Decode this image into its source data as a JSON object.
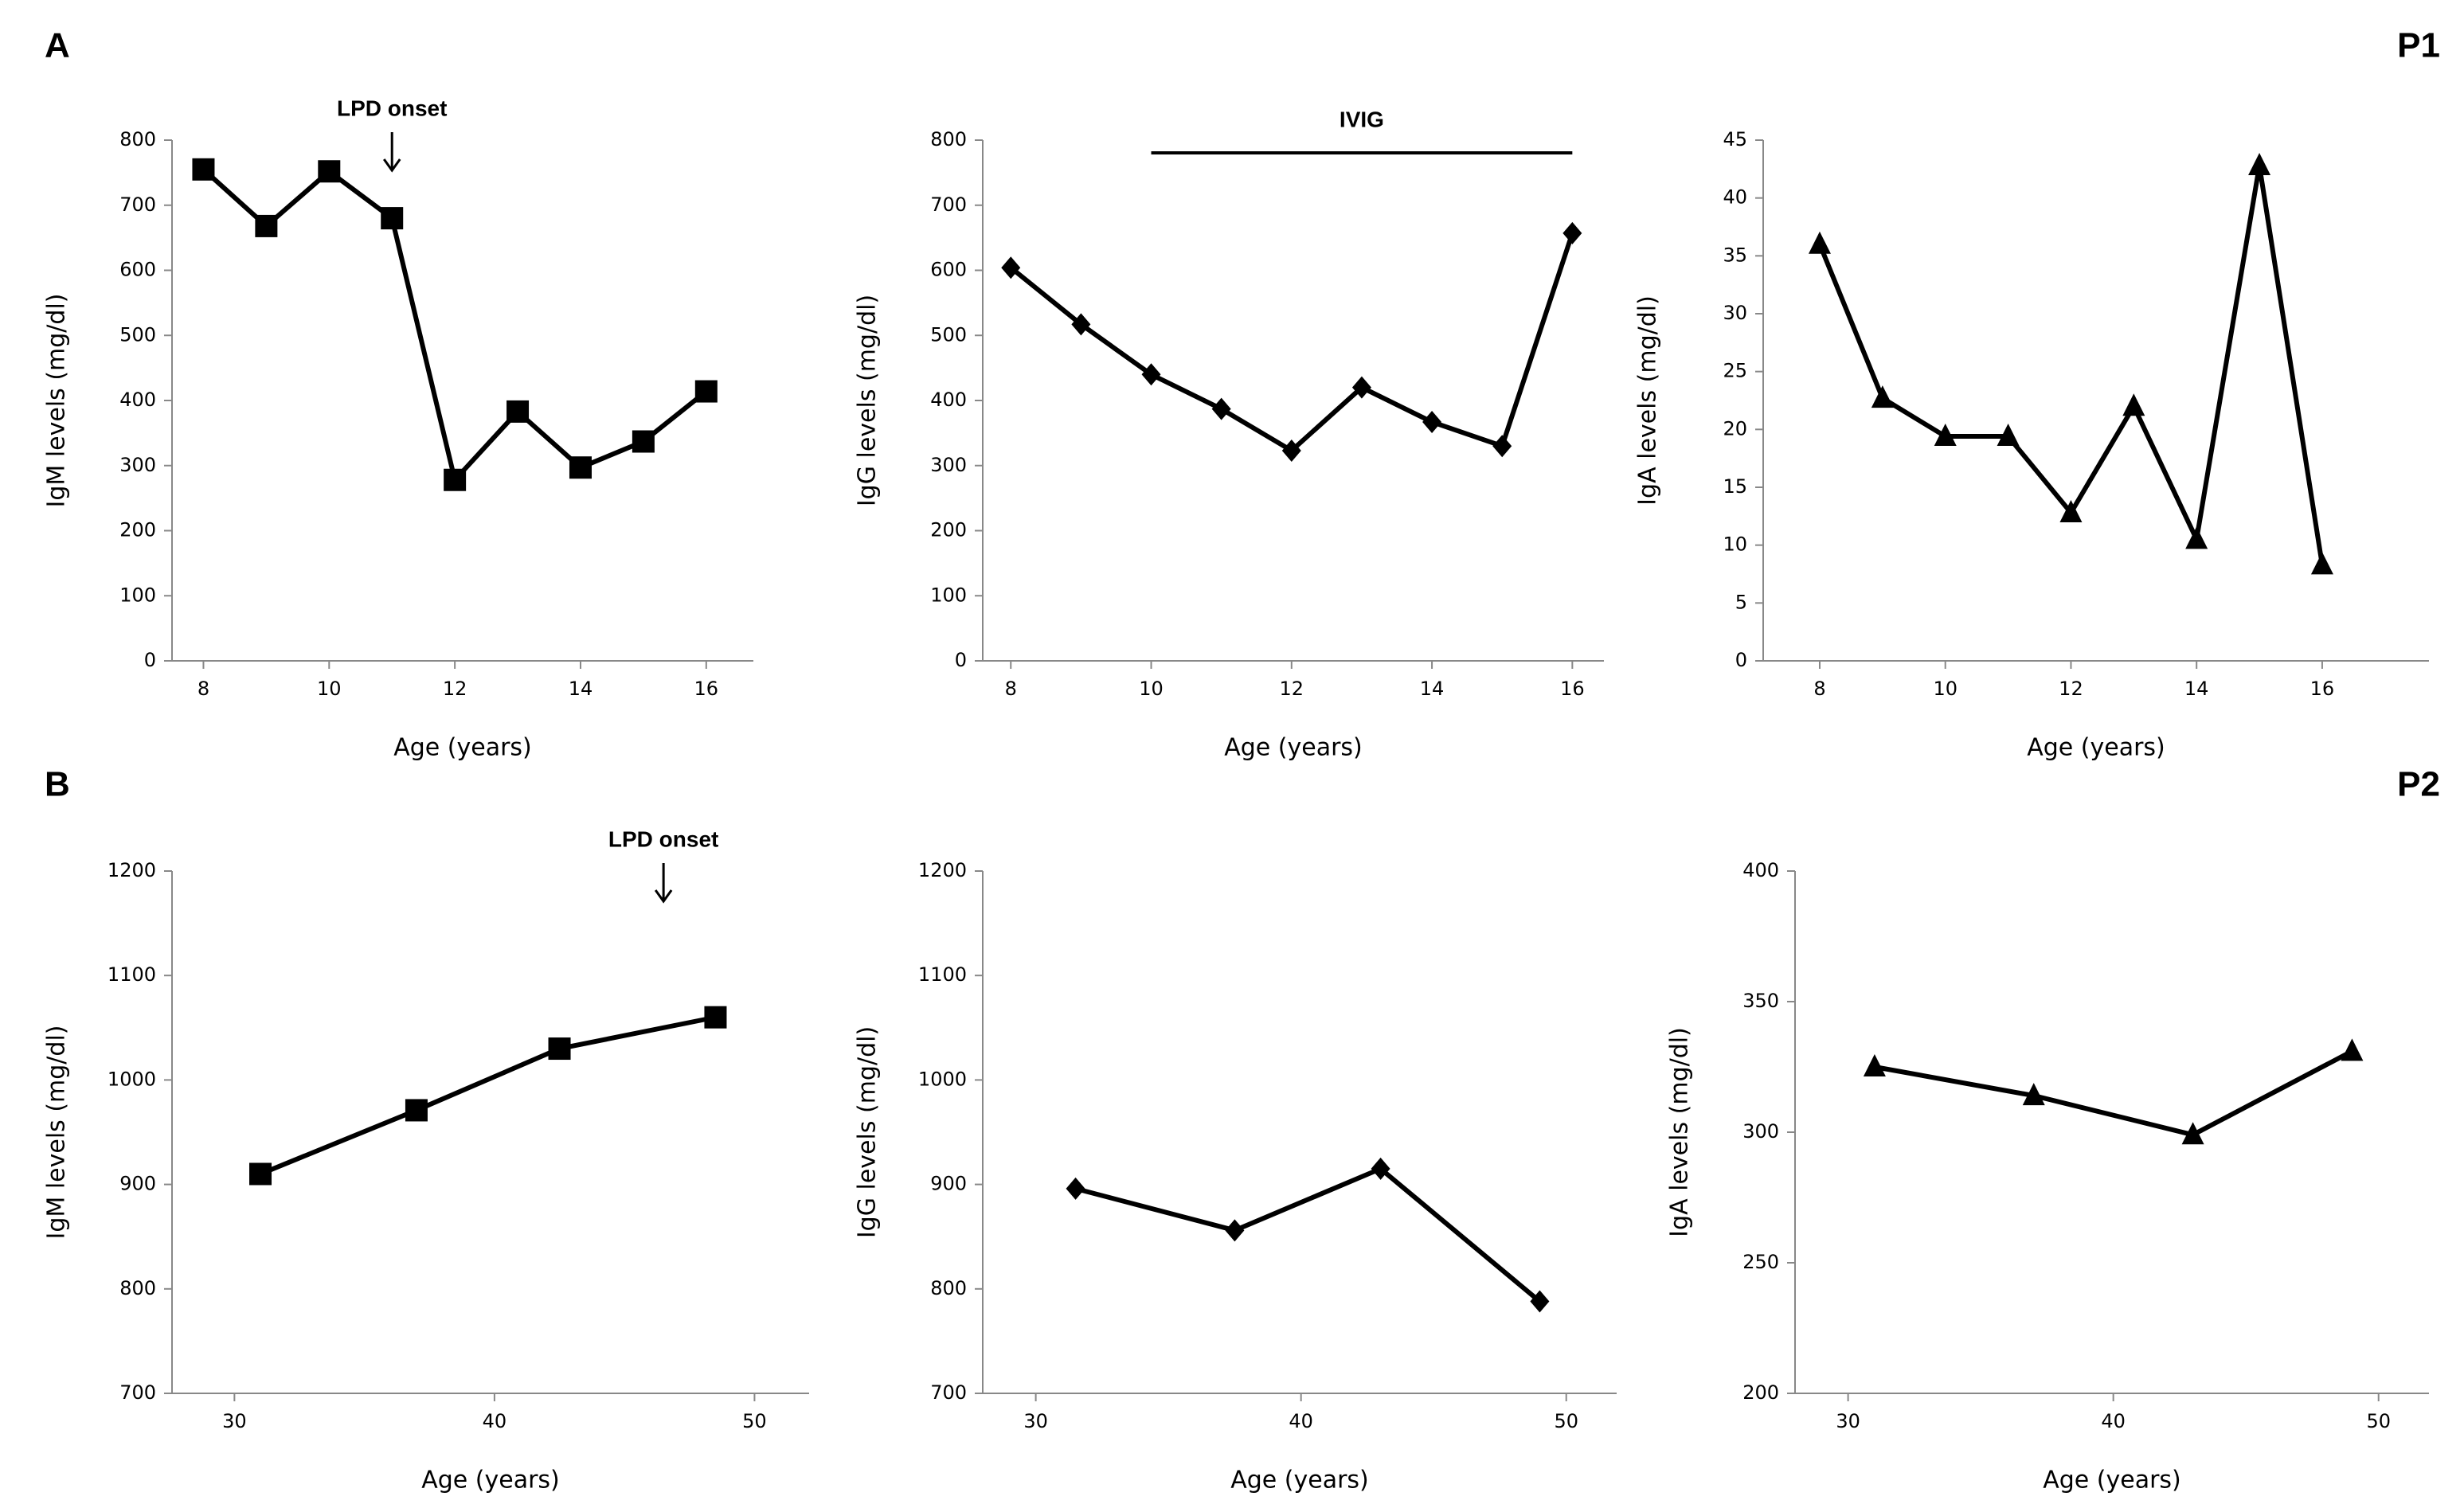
{
  "chart_data": [
    {
      "type": "line",
      "panel_label": "A",
      "marker": "square",
      "color": "#000000",
      "x_label": "Age (years)",
      "y_label": "IgM levels (mg/dl)",
      "x": [
        8,
        9,
        10,
        11,
        12,
        13,
        14,
        15,
        16
      ],
      "series": [
        {
          "values": [
            755,
            668,
            752,
            680,
            278,
            383,
            297,
            337,
            414
          ]
        }
      ],
      "xlim": [
        7.5,
        16.75
      ],
      "xticks": [
        8,
        10,
        12,
        14,
        16
      ],
      "ylim": [
        0,
        800
      ],
      "yticks": [
        0,
        100,
        200,
        300,
        400,
        500,
        600,
        700,
        800
      ],
      "annotations": [
        {
          "text": "LPD onset",
          "x": 11
        }
      ]
    },
    {
      "type": "line",
      "marker": "diamond",
      "color": "#000000",
      "x_label": "Age (years)",
      "y_label": "IgG levels (mg/dl)",
      "x": [
        8,
        9,
        10,
        11,
        12,
        13,
        14,
        15,
        16
      ],
      "series": [
        {
          "values": [
            604,
            517,
            440,
            387,
            323,
            420,
            367,
            330,
            657
          ]
        }
      ],
      "xlim": [
        7.6,
        16.45
      ],
      "xticks": [
        8,
        10,
        12,
        14,
        16
      ],
      "ylim": [
        0,
        800
      ],
      "yticks": [
        0,
        100,
        200,
        300,
        400,
        500,
        600,
        700,
        800
      ],
      "periods": [
        {
          "text": "IVIG",
          "x_start": 10,
          "x_end": 16
        }
      ]
    },
    {
      "type": "line",
      "panel_label": "P1",
      "marker": "triangle",
      "color": "#000000",
      "x_label": "Age (years)",
      "y_label": "IgA levels (mg/dl)",
      "x": [
        8,
        9,
        10,
        11,
        12,
        13,
        14,
        15,
        16
      ],
      "series": [
        {
          "values": [
            36,
            22.7,
            19.4,
            19.4,
            12.8,
            22,
            10.5,
            42.8,
            8.3
          ]
        }
      ],
      "xlim": [
        7.1,
        17.7
      ],
      "xticks": [
        8,
        10,
        12,
        14,
        16
      ],
      "ylim": [
        0,
        45
      ],
      "yticks": [
        0,
        5,
        10,
        15,
        20,
        25,
        30,
        35,
        40,
        45
      ]
    },
    {
      "type": "line",
      "panel_label": "B",
      "marker": "square",
      "color": "#000000",
      "x_label": "Age (years)",
      "y_label": "IgM levels (mg/dl)",
      "x": [
        31,
        37,
        42.5,
        48.5
      ],
      "series": [
        {
          "values": [
            910,
            971,
            1030,
            1060
          ]
        }
      ],
      "xlim": [
        27.6,
        52.1
      ],
      "xticks": [
        30,
        40,
        50
      ],
      "ylim": [
        700,
        1200
      ],
      "yticks": [
        700,
        800,
        900,
        1000,
        1100,
        1200
      ],
      "annotations": [
        {
          "text": "LPD onset",
          "x": 46.5
        }
      ]
    },
    {
      "type": "line",
      "marker": "diamond",
      "color": "#000000",
      "x_label": "Age (years)",
      "y_label": "IgG levels (mg/dl)",
      "x": [
        31.5,
        37.5,
        43,
        49
      ],
      "series": [
        {
          "values": [
            896,
            856,
            915,
            788
          ]
        }
      ],
      "xlim": [
        28,
        51.9
      ],
      "xticks": [
        30,
        40,
        50
      ],
      "ylim": [
        700,
        1200
      ],
      "yticks": [
        700,
        800,
        900,
        1000,
        1100,
        1200
      ]
    },
    {
      "type": "line",
      "panel_label": "P2",
      "marker": "triangle",
      "color": "#000000",
      "x_label": "Age (years)",
      "y_label": "IgA levels (mg/dl)",
      "x": [
        31,
        37,
        43,
        49
      ],
      "series": [
        {
          "values": [
            325,
            314,
            299,
            331
          ]
        }
      ],
      "xlim": [
        28,
        51.9
      ],
      "xticks": [
        30,
        40,
        50
      ],
      "ylim": [
        200,
        400
      ],
      "yticks": [
        200,
        250,
        300,
        350,
        400
      ]
    }
  ]
}
